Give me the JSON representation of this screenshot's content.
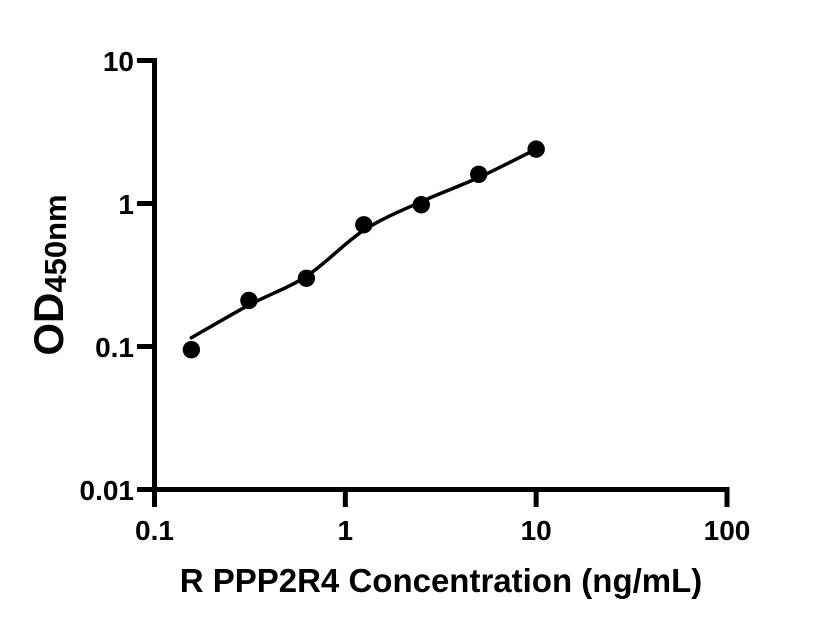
{
  "figure": {
    "background": "#ffffff",
    "ink": "#000000"
  },
  "chart_data": {
    "type": "scatter",
    "title": "",
    "xlabel": "R PPP2R4 Concentration (ng/mL)",
    "ylabel_main": "OD",
    "ylabel_sub": "450nm",
    "x_scale": "log",
    "y_scale": "log",
    "xlim": [
      0.1,
      100
    ],
    "ylim": [
      0.01,
      10
    ],
    "grid": false,
    "legend": false,
    "x_ticks": [
      {
        "value": 0.1,
        "label": "0.1"
      },
      {
        "value": 1,
        "label": "1"
      },
      {
        "value": 10,
        "label": "10"
      },
      {
        "value": 100,
        "label": "100"
      }
    ],
    "y_ticks": [
      {
        "value": 10,
        "label": "10"
      },
      {
        "value": 1,
        "label": "1"
      },
      {
        "value": 0.1,
        "label": "0.1"
      },
      {
        "value": 0.01,
        "label": "0.01"
      }
    ],
    "series": [
      {
        "marker": "filled-circle",
        "marker_color": "#000000",
        "line_color": "#000000",
        "x": [
          0.156,
          0.3125,
          0.625,
          1.25,
          2.5,
          5,
          10
        ],
        "y": [
          0.095,
          0.21,
          0.3,
          0.71,
          0.98,
          1.6,
          2.4
        ],
        "fit_line": [
          [
            0.156,
            0.115
          ],
          [
            0.3125,
            0.195
          ],
          [
            0.625,
            0.31
          ],
          [
            1.25,
            0.65
          ],
          [
            2.5,
            1.03
          ],
          [
            5,
            1.52
          ],
          [
            10,
            2.4
          ]
        ]
      }
    ]
  }
}
